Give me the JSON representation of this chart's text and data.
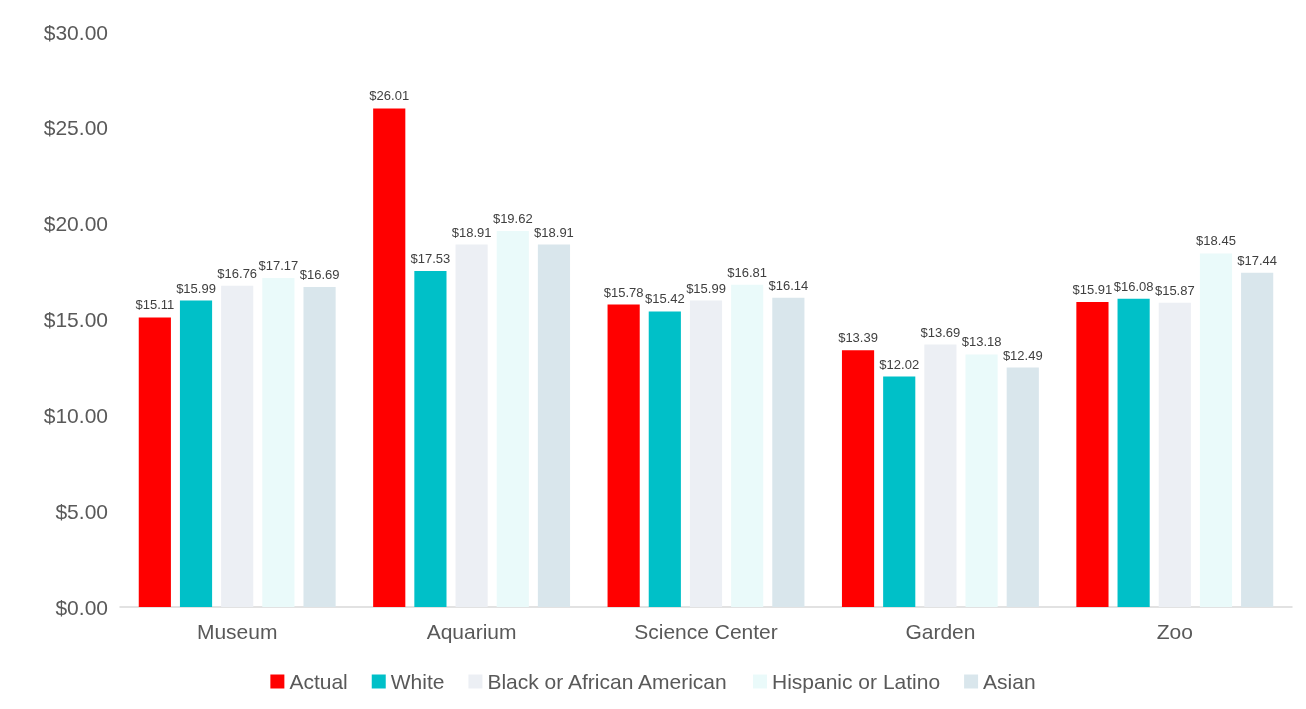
{
  "chart_data": {
    "type": "bar",
    "categories": [
      "Museum",
      "Aquarium",
      "Science Center",
      "Garden",
      "Zoo"
    ],
    "series": [
      {
        "name": "Actual",
        "color": "#ff0000",
        "values": [
          15.11,
          26.01,
          15.78,
          13.39,
          15.91
        ],
        "value_labels": [
          "$15.11",
          "$26.01",
          "$15.78",
          "$13.39",
          "$15.91"
        ]
      },
      {
        "name": "White",
        "color": "#00c0c8",
        "values": [
          15.99,
          17.53,
          15.42,
          12.02,
          16.08
        ],
        "value_labels": [
          "$15.99",
          "$17.53",
          "$15.42",
          "$12.02",
          "$16.08"
        ]
      },
      {
        "name": "Black or African American",
        "color": "#eceff4",
        "values": [
          16.76,
          18.91,
          15.99,
          13.69,
          15.87
        ],
        "value_labels": [
          "$16.76",
          "$18.91",
          "$15.99",
          "$13.69",
          "$15.87"
        ]
      },
      {
        "name": "Hispanic or Latino",
        "color": "#eafafa",
        "values": [
          17.17,
          19.62,
          16.81,
          13.18,
          18.45
        ],
        "value_labels": [
          "$17.17",
          "$19.62",
          "$16.81",
          "$13.18",
          "$18.45"
        ]
      },
      {
        "name": "Asian",
        "color": "#d9e6ec",
        "values": [
          16.69,
          18.91,
          16.14,
          12.49,
          17.44
        ],
        "value_labels": [
          "$16.69",
          "$18.91",
          "$16.14",
          "$12.49",
          "$17.44"
        ]
      }
    ],
    "ylim": [
      0,
      30
    ],
    "yticks": [
      {
        "value": 0,
        "label": "$0.00"
      },
      {
        "value": 5,
        "label": "$5.00"
      },
      {
        "value": 10,
        "label": "$10.00"
      },
      {
        "value": 15,
        "label": "$15.00"
      },
      {
        "value": 20,
        "label": "$20.00"
      },
      {
        "value": 25,
        "label": "$25.00"
      },
      {
        "value": 30,
        "label": "$30.00"
      }
    ],
    "grid": false,
    "legend": "bottom"
  }
}
